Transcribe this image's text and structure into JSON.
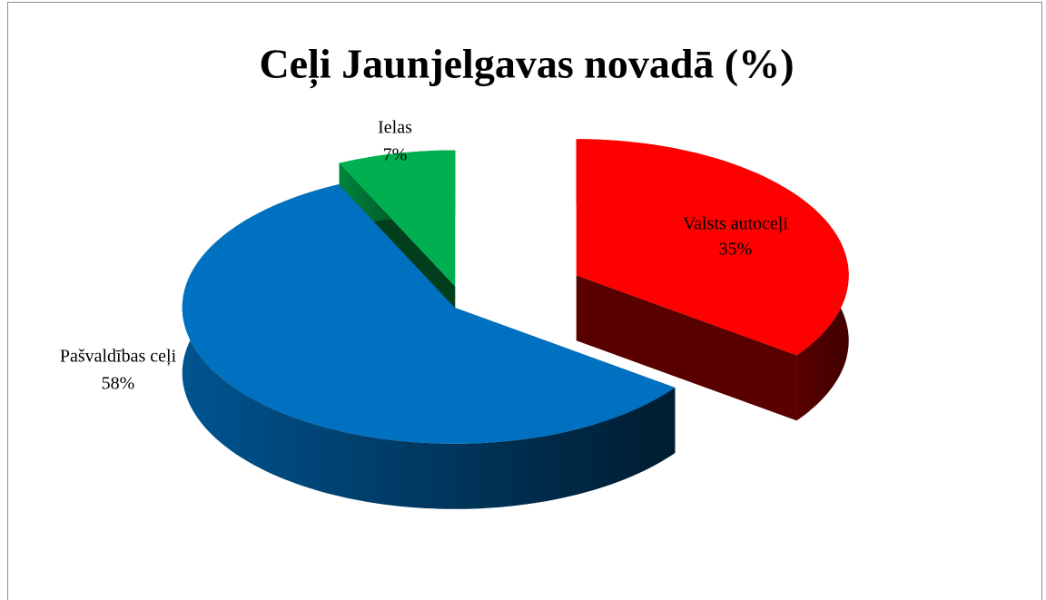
{
  "chart_data": {
    "type": "pie3d",
    "title": "Ceļi Jaunjelgavas novadā (%)",
    "categories": [
      "Valsts autoceļi",
      "Pašvaldības ceļi",
      "Ielas"
    ],
    "values": [
      35,
      58,
      7
    ],
    "value_labels": [
      "35%",
      "58%",
      "7%"
    ],
    "colors": [
      "#ff0000",
      "#0070c0",
      "#00b050"
    ]
  }
}
